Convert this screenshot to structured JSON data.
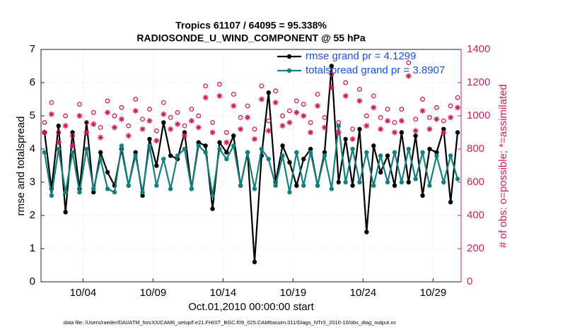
{
  "chart_data": {
    "type": "line",
    "title": "Tropics 61107 / 64095 = 95.338%",
    "subtitle": "RADIOSONDE_U_WIND_COMPONENT @ 55 hPa",
    "xlabel": "Oct.01,2010 00:00:00 start",
    "ylabel": "rmse and totalspread",
    "y2label": "# of obs: o=possible; *=assimilated",
    "footnote": "data file: /Users/raeder/DAI/ATM_forcXX/CAM6_setup/f.e21.FHIST_BGC.f09_025.CAM6assim.011/Diags_NTrS_2010-10/obs_diag_output.nc",
    "xlim": [
      0,
      30
    ],
    "xticks": [
      {
        "value": 3,
        "label": "10/04"
      },
      {
        "value": 8,
        "label": "10/09"
      },
      {
        "value": 13,
        "label": "10/14"
      },
      {
        "value": 18,
        "label": "10/19"
      },
      {
        "value": 23,
        "label": "10/24"
      },
      {
        "value": 28,
        "label": "10/29"
      }
    ],
    "ylim": [
      0,
      7
    ],
    "yticks": [
      0,
      1,
      2,
      3,
      4,
      5,
      6,
      7
    ],
    "y2lim": [
      0,
      1400
    ],
    "y2ticks": [
      0,
      200,
      400,
      600,
      800,
      1000,
      1200,
      1400
    ],
    "grid": true,
    "legend": "upper right",
    "x": [
      0.25,
      0.75,
      1.25,
      1.75,
      2.25,
      2.75,
      3.25,
      3.75,
      4.25,
      4.75,
      5.25,
      5.75,
      6.25,
      6.75,
      7.25,
      7.75,
      8.25,
      8.75,
      9.25,
      9.75,
      10.25,
      10.75,
      11.25,
      11.75,
      12.25,
      12.75,
      13.25,
      13.75,
      14.25,
      14.75,
      15.25,
      15.75,
      16.25,
      16.75,
      17.25,
      17.75,
      18.25,
      18.75,
      19.25,
      19.75,
      20.25,
      20.75,
      21.25,
      21.75,
      22.25,
      22.75,
      23.25,
      23.75,
      24.25,
      24.75,
      25.25,
      25.75,
      26.25,
      26.75,
      27.25,
      27.75,
      28.25,
      28.75,
      29.25,
      29.75
    ],
    "series": [
      {
        "name": "rmse grand pr = 4.1299",
        "color": "#000000",
        "marker": "dot",
        "values": [
          4.5,
          2.8,
          4.7,
          2.1,
          4.5,
          2.8,
          4.8,
          2.7,
          3.9,
          3.3,
          2.9,
          4.0,
          2.9,
          3.9,
          2.6,
          4.3,
          3.5,
          4.8,
          3.8,
          3.7,
          4.5,
          2.8,
          4.2,
          4.1,
          2.2,
          4.2,
          3.9,
          4.4,
          2.9,
          3.9,
          0.6,
          3.8,
          5.7,
          3.0,
          4.1,
          3.6,
          2.9,
          3.7,
          4.0,
          2.9,
          3.9,
          6.5,
          3.0,
          4.3,
          2.9,
          4.6,
          1.5,
          4.1,
          3.3,
          3.8,
          2.9,
          4.5,
          3.0,
          4.4,
          2.6,
          4.0,
          3.9,
          4.6,
          2.4,
          4.5
        ]
      },
      {
        "name": "totalspread grand pr = 3.8907",
        "color": "#138080",
        "marker": "dot",
        "values": [
          3.9,
          2.6,
          4.0,
          2.7,
          3.9,
          2.7,
          4.0,
          2.8,
          3.7,
          2.8,
          2.7,
          4.1,
          2.9,
          3.8,
          2.7,
          4.1,
          2.9,
          3.7,
          2.8,
          3.8,
          4.0,
          2.8,
          4.1,
          3.9,
          2.6,
          4.0,
          3.7,
          4.1,
          2.9,
          3.9,
          2.8,
          4.0,
          3.7,
          2.9,
          3.8,
          2.7,
          3.9,
          2.9,
          3.9,
          2.9,
          3.8,
          2.8,
          4.7,
          3.0,
          4.0,
          3.0,
          3.9,
          2.9,
          3.8,
          3.0,
          3.9,
          3.0,
          4.0,
          3.1,
          3.9,
          2.9,
          3.8,
          3.0,
          3.8,
          3.1
        ]
      },
      {
        "color": "#d01c5c",
        "marker": "circle",
        "axis": "y2",
        "values": [
          960,
          1080,
          900,
          1000,
          880,
          1070,
          960,
          1020,
          930,
          1090,
          1000,
          1050,
          940,
          1100,
          980,
          1040,
          910,
          1080,
          990,
          1020,
          940,
          1040,
          1000,
          1180,
          960,
          1190,
          900,
          1130,
          990,
          1060,
          920,
          1180,
          970,
          1150,
          1000,
          1030,
          1090,
          1070,
          960,
          1130,
          990,
          1250,
          960,
          1200,
          920,
          1160,
          1000,
          1120,
          990,
          1040,
          960,
          1040,
          1320,
          980,
          1100,
          990,
          1050,
          970,
          1060,
          1110
        ]
      },
      {
        "color": "#d01c5c",
        "marker": "star",
        "axis": "y2",
        "values": [
          900,
          1010,
          840,
          940,
          820,
          1000,
          900,
          950,
          870,
          1020,
          930,
          980,
          880,
          1030,
          920,
          970,
          850,
          1010,
          920,
          950,
          880,
          970,
          930,
          1110,
          900,
          1120,
          840,
          1060,
          920,
          990,
          860,
          1100,
          910,
          1080,
          940,
          960,
          1020,
          1000,
          900,
          1060,
          930,
          1170,
          900,
          1120,
          860,
          1090,
          940,
          1050,
          920,
          970,
          900,
          970,
          1240,
          910,
          1030,
          920,
          980,
          900,
          990,
          1050
        ]
      }
    ]
  }
}
